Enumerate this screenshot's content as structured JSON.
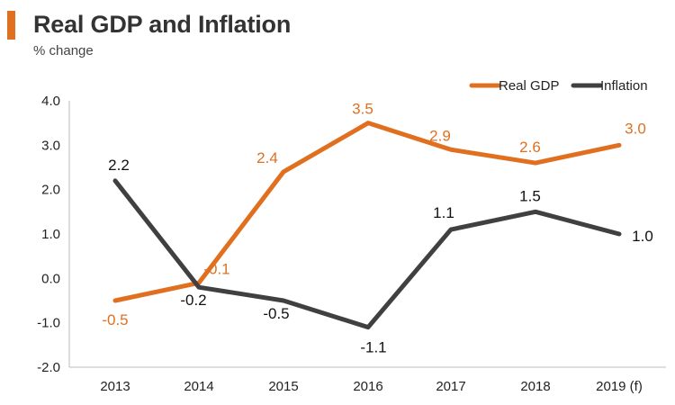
{
  "header": {
    "title": "Real GDP and Inflation",
    "subtitle": "% change",
    "accent_color": "#E07020"
  },
  "chart_data": {
    "type": "line",
    "title": "Real GDP and Inflation",
    "subtitle": "% change",
    "xlabel": "",
    "ylabel": "",
    "categories": [
      "2013",
      "2014",
      "2015",
      "2016",
      "2017",
      "2018",
      "2019 (f)"
    ],
    "ylim": [
      -2.0,
      4.0
    ],
    "yticks": [
      "4.0",
      "3.0",
      "2.0",
      "1.0",
      "0.0",
      "-1.0",
      "-2.0"
    ],
    "grid": false,
    "legend_position": "top-right",
    "series": [
      {
        "name": "Real GDP",
        "color": "#E07020",
        "values": [
          -0.5,
          -0.1,
          2.4,
          3.5,
          2.9,
          2.6,
          3.0
        ],
        "labels": [
          "-0.5",
          "-0.1",
          "2.4",
          "3.5",
          "2.9",
          "2.6",
          "3.0"
        ]
      },
      {
        "name": "Inflation",
        "color": "#404040",
        "values": [
          2.2,
          -0.2,
          -0.5,
          -1.1,
          1.1,
          1.5,
          1.0
        ],
        "labels": [
          "2.2",
          "-0.2",
          "-0.5",
          "-1.1",
          "1.1",
          "1.5",
          "1.0"
        ]
      }
    ]
  }
}
